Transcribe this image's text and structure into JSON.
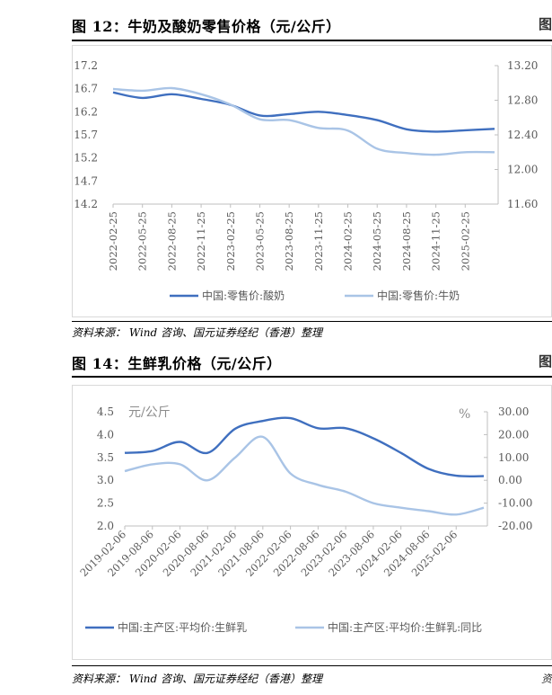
{
  "figure12": {
    "title": "图 12：牛奶及酸奶零售价格（元/公斤）",
    "source": "资料来源： Wind 咨询、国元证券经纪（香港）整理"
  },
  "figure14": {
    "title": "图 14：生鲜乳价格（元/公斤）",
    "source": "资料来源： Wind 咨询、国元证券经纪（香港）整理"
  },
  "edge_marks": {
    "fig12_right": "图",
    "fig14_right": "图",
    "source_right": "资"
  },
  "colors": {
    "dark_blue": "#3f6fbf",
    "light_blue": "#a9c4e6",
    "axis": "#bfbfbf",
    "text": "#595959"
  },
  "chart_data": [
    {
      "type": "line",
      "title": "牛奶及酸奶零售价格（元/公斤）",
      "x": [
        "2022-02-25",
        "2022-05-25",
        "2022-08-25",
        "2022-11-25",
        "2023-02-25",
        "2023-05-25",
        "2023-08-25",
        "2023-11-25",
        "2024-02-25",
        "2024-05-25",
        "2024-08-25",
        "2024-11-25",
        "2025-02-25",
        "2025-03-25"
      ],
      "xticks": [
        "2022-02-25",
        "2022-05-25",
        "2022-08-25",
        "2022-11-25",
        "2023-02-25",
        "2023-05-25",
        "2023-08-25",
        "2023-11-25",
        "2024-02-25",
        "2024-05-25",
        "2024-08-25",
        "2024-11-25",
        "2025-02-25"
      ],
      "y_left": {
        "ticks": [
          "17.2",
          "16.7",
          "16.2",
          "15.7",
          "15.2",
          "14.7",
          "14.2"
        ],
        "range": [
          14.2,
          17.2
        ]
      },
      "y_right": {
        "ticks": [
          "13.20",
          "12.80",
          "12.40",
          "12.00",
          "11.60"
        ],
        "range": [
          11.6,
          13.2
        ]
      },
      "series": [
        {
          "name": "中国:零售价:酸奶",
          "axis": "left",
          "color": "#3f6fbf",
          "values": [
            16.62,
            16.5,
            16.58,
            16.48,
            16.35,
            16.12,
            16.15,
            16.2,
            16.13,
            16.02,
            15.82,
            15.77,
            15.8,
            15.83
          ]
        },
        {
          "name": "中国:零售价:牛奶",
          "axis": "right",
          "color": "#a9c4e6",
          "values": [
            12.93,
            12.91,
            12.94,
            12.87,
            12.75,
            12.58,
            12.57,
            12.48,
            12.45,
            12.24,
            12.19,
            12.17,
            12.2,
            12.2
          ]
        }
      ],
      "legend": [
        "中国:零售价:酸奶",
        "中国:零售价:牛奶"
      ]
    },
    {
      "type": "line",
      "title": "生鲜乳价格（元/公斤）",
      "x": [
        "2019-02-06",
        "2019-08-06",
        "2020-02-06",
        "2020-08-06",
        "2021-02-06",
        "2021-08-06",
        "2022-02-06",
        "2022-08-06",
        "2023-02-06",
        "2023-08-06",
        "2024-02-06",
        "2024-08-06",
        "2025-02-06",
        "2025-03-06"
      ],
      "xticks": [
        "2019-02-06",
        "2019-08-06",
        "2020-02-06",
        "2020-08-06",
        "2021-02-06",
        "2021-08-06",
        "2022-02-06",
        "2022-08-06",
        "2023-02-06",
        "2023-08-06",
        "2024-02-06",
        "2024-08-06",
        "2025-02-06"
      ],
      "y_left": {
        "label": "元/公斤",
        "ticks": [
          "4.5",
          "4.0",
          "3.5",
          "3.0",
          "2.5",
          "2.0"
        ],
        "range": [
          2.0,
          4.5
        ]
      },
      "y_right": {
        "label": "%",
        "ticks": [
          "30.00",
          "20.00",
          "10.00",
          "0.00",
          "-10.00",
          "-20.00"
        ],
        "range": [
          -20,
          30
        ]
      },
      "series": [
        {
          "name": "中国:主产区:平均价:生鲜乳",
          "axis": "left",
          "color": "#3f6fbf",
          "values": [
            3.6,
            3.64,
            3.84,
            3.6,
            4.13,
            4.3,
            4.36,
            4.14,
            4.14,
            3.92,
            3.6,
            3.25,
            3.1,
            3.09
          ]
        },
        {
          "name": "中国:主产区:平均价:生鲜乳:同比",
          "axis": "right",
          "color": "#a9c4e6",
          "values": [
            4.0,
            7.0,
            7.0,
            0.0,
            10.0,
            19.0,
            3.0,
            -2.0,
            -5.0,
            -10.0,
            -12.0,
            -13.5,
            -15.0,
            -12.0
          ]
        }
      ],
      "legend": [
        "中国:主产区:平均价:生鲜乳",
        "中国:主产区:平均价:生鲜乳:同比"
      ]
    }
  ]
}
